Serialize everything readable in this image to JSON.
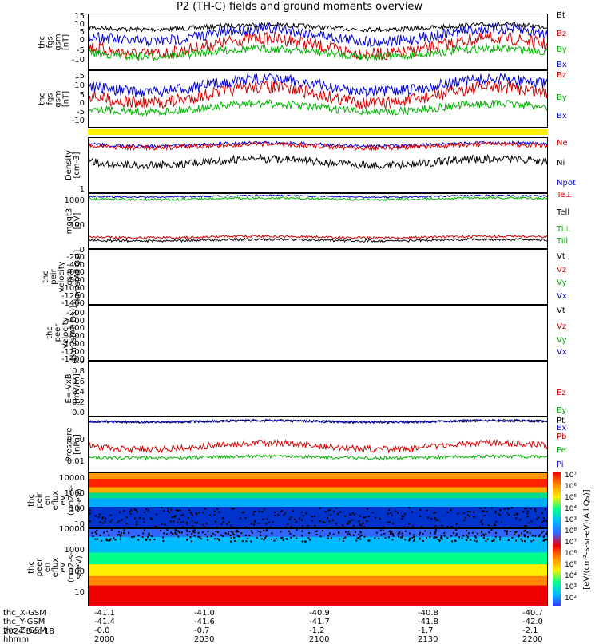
{
  "title": "P2 (TH-C) fields and ground moments overview",
  "panels": [
    {
      "id": "fgs1",
      "ylabel": [
        "thc",
        "fgs",
        "gsm",
        "[nT]"
      ],
      "ticks": [
        "15",
        "10",
        "5",
        "0",
        "-5",
        "-10"
      ],
      "legend": [
        {
          "t": "Bt",
          "c": "#000000"
        },
        {
          "t": "Bz",
          "c": "#d00000"
        },
        {
          "t": "By",
          "c": "#00b000"
        },
        {
          "t": "Bx",
          "c": "#0000d0"
        }
      ]
    },
    {
      "id": "fgs2",
      "ylabel": [
        "thc",
        "fgs",
        "gsm",
        "[nT]"
      ],
      "ticks": [
        "15",
        "10",
        "5",
        "0",
        "-5",
        "-10"
      ],
      "legend": [
        {
          "t": "Bz",
          "c": "#d00000"
        },
        {
          "t": "By",
          "c": "#00b000"
        },
        {
          "t": "Bx",
          "c": "#0000d0"
        }
      ]
    },
    {
      "id": "dens",
      "ylabel": [
        "Density",
        "[cm-3]"
      ],
      "ticks": [
        "1"
      ],
      "legend": [
        {
          "t": "Ne",
          "c": "#d00000"
        },
        {
          "t": "Ni",
          "c": "#000000"
        },
        {
          "t": "Npot",
          "c": "#0000d0"
        }
      ]
    },
    {
      "id": "temp",
      "ylabel": [
        "moqt3",
        "[eV]"
      ],
      "ticks": [
        "1000",
        "100"
      ],
      "legend": [
        {
          "t": "Te⊥",
          "c": "#d00000"
        },
        {
          "t": "Tell",
          "c": "#000000"
        },
        {
          "t": "Ti⊥",
          "c": "#00b000"
        },
        {
          "t": "Till",
          "c": "#00b000"
        }
      ]
    },
    {
      "id": "vi",
      "ylabel": [
        "thc",
        "peir",
        "velocity",
        "gsm",
        "[km/s(All Qs)]"
      ],
      "ticks": [
        "0",
        "-200",
        "-400",
        "-600",
        "-800",
        "-1000",
        "-1200",
        "-1400"
      ],
      "legend": [
        {
          "t": "Vt",
          "c": "#000000"
        },
        {
          "t": "Vz",
          "c": "#d00000"
        },
        {
          "t": "Vy",
          "c": "#00b000"
        },
        {
          "t": "Vx",
          "c": "#0000d0"
        }
      ]
    },
    {
      "id": "ve",
      "ylabel": [
        "thc",
        "peer",
        "velocity",
        "[km/s(All Qs)]"
      ],
      "ticks": [
        "-200",
        "-400",
        "-600",
        "-800",
        "-1000",
        "-1200",
        "-1400"
      ],
      "legend": [
        {
          "t": "Vt",
          "c": "#000000"
        },
        {
          "t": "Vz",
          "c": "#d00000"
        },
        {
          "t": "Vy",
          "c": "#00b000"
        },
        {
          "t": "Vx",
          "c": "#0000d0"
        }
      ]
    },
    {
      "id": "efield",
      "ylabel": [
        "E=-VxB",
        "[mV/m]"
      ],
      "ticks": [
        "1.0",
        "0.8",
        "0.6",
        "0.4",
        "0.2",
        "0.0"
      ],
      "legend": [
        {
          "t": "Ez",
          "c": "#d00000"
        },
        {
          "t": "Ey",
          "c": "#00b000"
        },
        {
          "t": "Ex",
          "c": "#0000d0"
        }
      ]
    },
    {
      "id": "press",
      "ylabel": [
        "Pressure",
        "[nPa]"
      ],
      "ticks": [
        "0.10",
        "0.01"
      ],
      "legend": [
        {
          "t": "Pt",
          "c": "#000000"
        },
        {
          "t": "Pb",
          "c": "#d00000"
        },
        {
          "t": "Pe",
          "c": "#00b000"
        },
        {
          "t": "Pi",
          "c": "#0000d0"
        }
      ]
    },
    {
      "id": "spec_i",
      "ylabel": [
        "thc",
        "peir",
        "en",
        "eflux",
        "eV",
        "(cm2-s-",
        "sr-eV)"
      ],
      "ticks": [
        "10000",
        "1000",
        "100",
        "10"
      ],
      "legend": []
    },
    {
      "id": "spec_e",
      "ylabel": [
        "thc",
        "peer",
        "en",
        "eflux",
        "eV",
        "(cm2-s-",
        "sr-eV)"
      ],
      "ticks": [
        "10000",
        "1000",
        "100",
        "10"
      ],
      "legend": []
    }
  ],
  "colorbar": {
    "labels": [
      "10⁷",
      "10⁶",
      "10⁵",
      "10⁴",
      "10³",
      "10⁸",
      "10⁷",
      "10⁶",
      "10⁵",
      "10⁴",
      "10³",
      "10²"
    ],
    "title": "[eV/(cm²-s-sr-eV)(All Qs)]"
  },
  "xaxis": {
    "rows": [
      {
        "name": "thc_X-GSM",
        "vals": [
          "-41.1",
          "-41.0",
          "-40.9",
          "-40.8",
          "-40.7"
        ]
      },
      {
        "name": "thc_Y-GSM",
        "vals": [
          "-41.4",
          "-41.6",
          "-41.7",
          "-41.8",
          "-42.0"
        ]
      },
      {
        "name": "thc_Z-GSM",
        "vals": [
          "-0.0",
          "-0.7",
          "-1.2",
          "-1.7",
          "-2.1"
        ]
      },
      {
        "name": "hhmm",
        "vals": [
          "2000",
          "2030",
          "2100",
          "2130",
          "2200"
        ]
      }
    ],
    "date": "2024 Dec 18"
  },
  "chart_data": {
    "type": "line",
    "title": "P2 (TH-C) fields and ground moments overview",
    "x_ticks": [
      "2000",
      "2030",
      "2100",
      "2130",
      "2200"
    ],
    "series": [
      {
        "name": "Bt",
        "panel": "fgs1",
        "approx_range": [
          8,
          15
        ]
      },
      {
        "name": "Bz",
        "panel": "fgs1",
        "approx_range": [
          -10,
          12
        ]
      },
      {
        "name": "By",
        "panel": "fgs1",
        "approx_range": [
          -10,
          2
        ]
      },
      {
        "name": "Bx",
        "panel": "fgs1",
        "approx_range": [
          -8,
          12
        ]
      },
      {
        "name": "Ne",
        "panel": "dens",
        "approx_range": [
          0.1,
          0.3
        ]
      },
      {
        "name": "Ni",
        "panel": "dens",
        "approx_range": [
          0.02,
          0.1
        ]
      },
      {
        "name": "Te⊥",
        "panel": "temp",
        "approx_range": [
          1500,
          2000
        ]
      },
      {
        "name": "Ti⊥",
        "panel": "temp",
        "approx_range": [
          25,
          40
        ]
      },
      {
        "name": "Pt",
        "panel": "press",
        "approx_range": [
          0.2,
          0.3
        ]
      },
      {
        "name": "Pb",
        "panel": "press",
        "approx_range": [
          0.02,
          0.09
        ]
      },
      {
        "name": "Pe",
        "panel": "press",
        "approx_range": [
          0.01,
          0.02
        ]
      }
    ]
  }
}
